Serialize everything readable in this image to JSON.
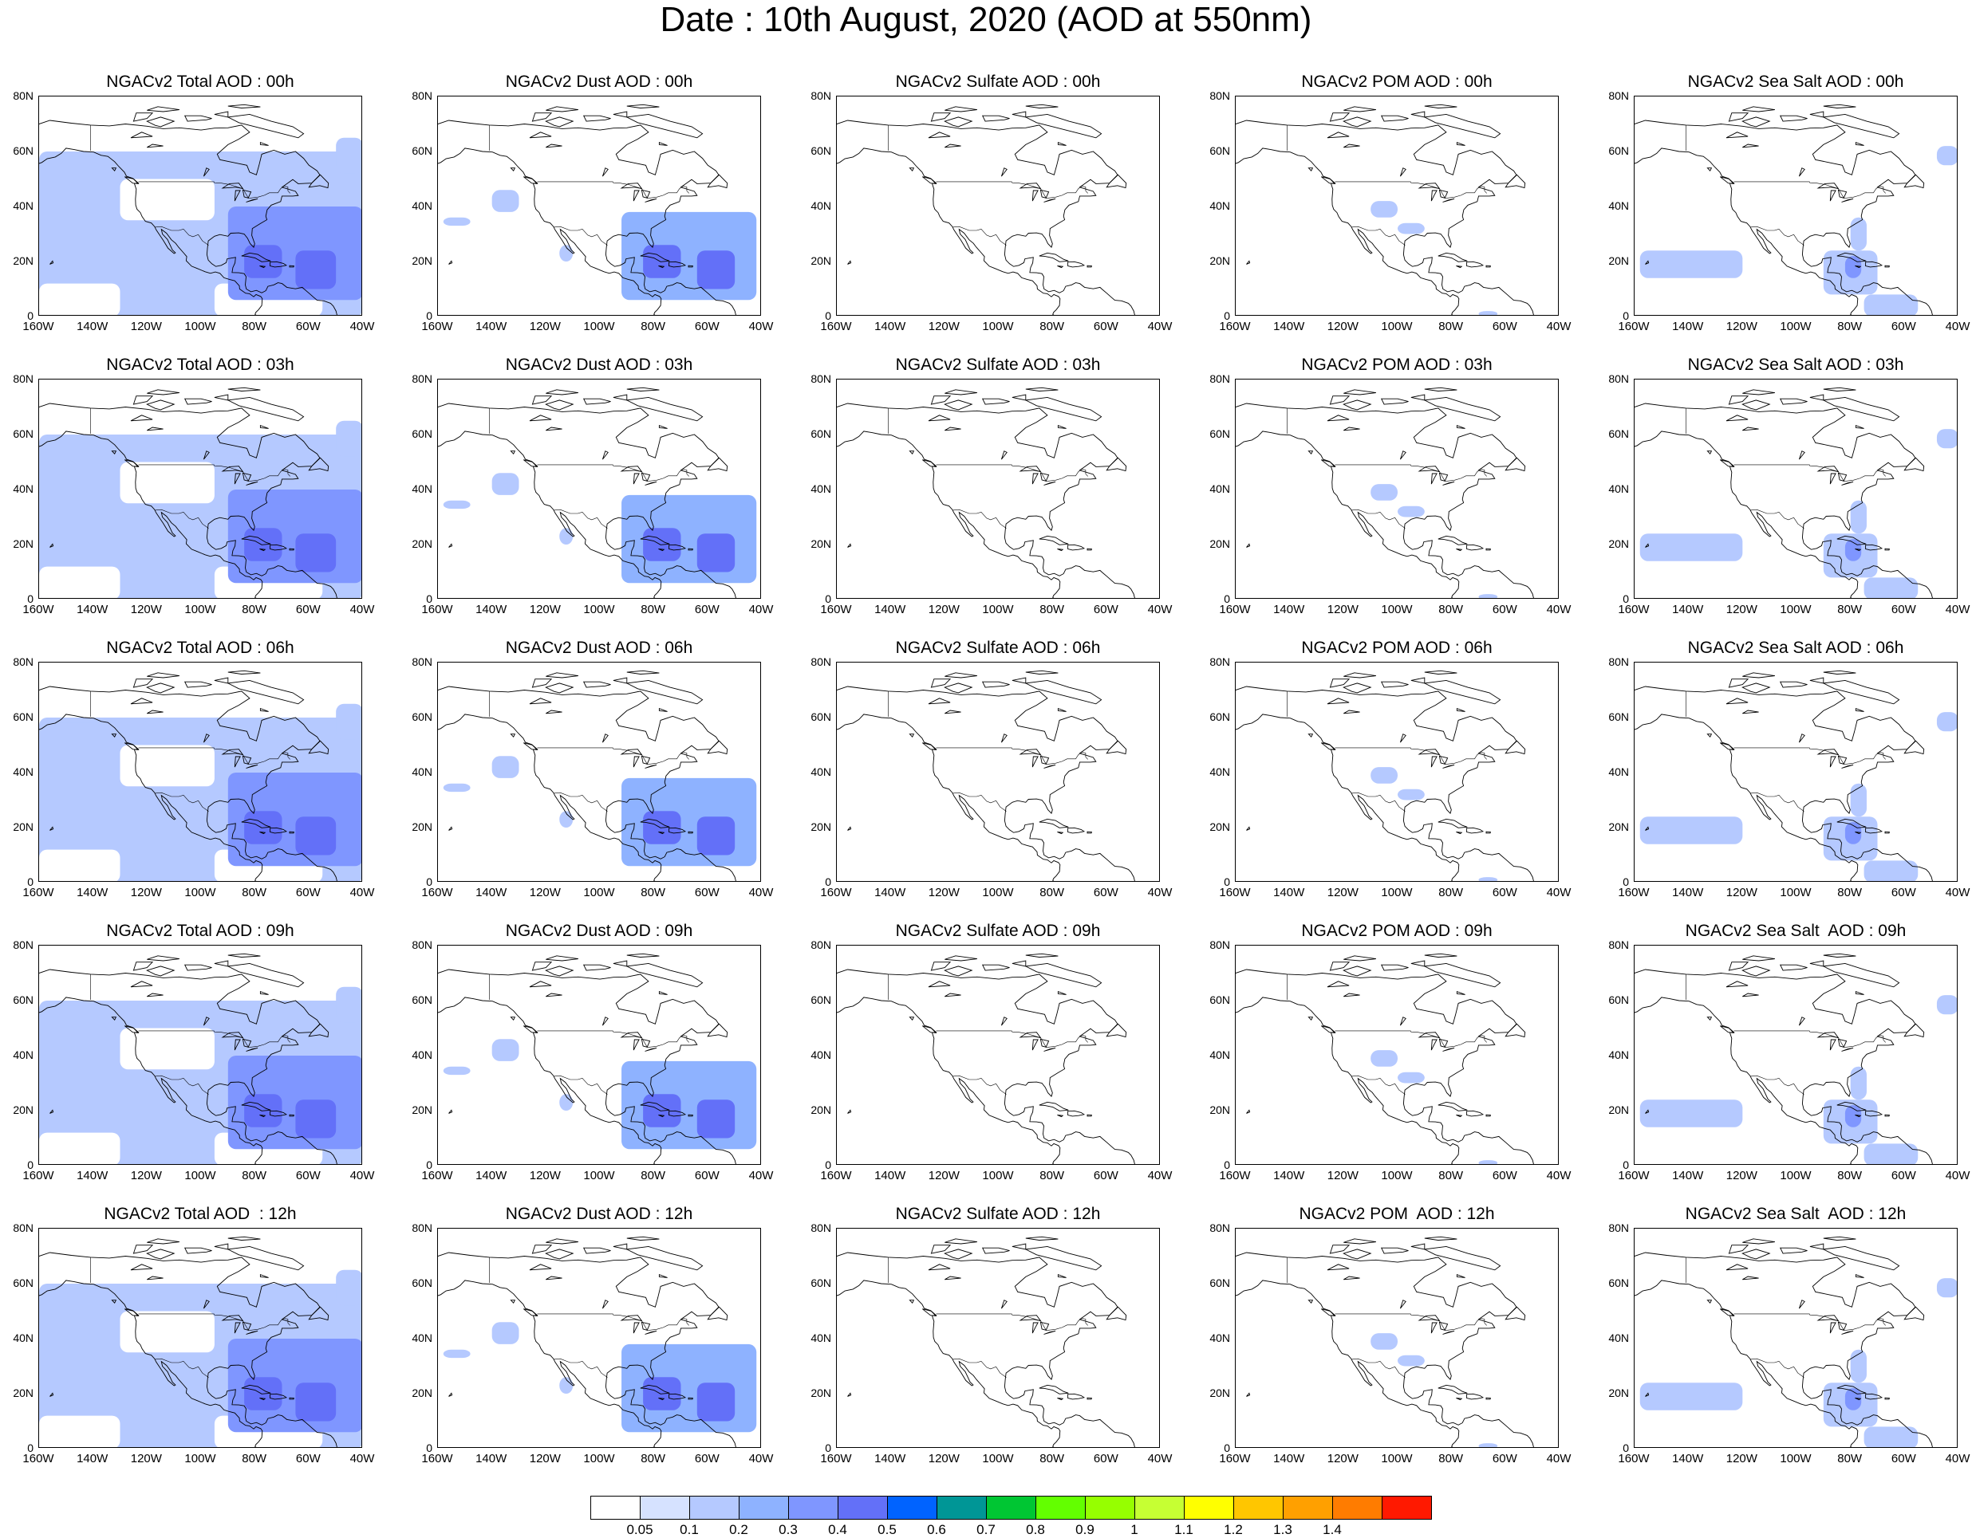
{
  "page_title": "Date : 10th August, 2020 (AOD at 550nm)",
  "map": {
    "columns": [
      "Total",
      "Dust",
      "Sulfate",
      "POM",
      "Sea Salt"
    ],
    "lat_ticks": [
      "80N",
      "60N",
      "40N",
      "20N",
      "0"
    ],
    "lon_ticks": [
      "160W",
      "140W",
      "120W",
      "100W",
      "80W",
      "60W",
      "40W"
    ],
    "lat_range": [
      0,
      80
    ],
    "lon_range": [
      -160,
      -40
    ],
    "panels": [
      {
        "title": "NGACv2 Total AOD : 00h",
        "species": "Total",
        "hour": "00h"
      },
      {
        "title": "NGACv2 Dust AOD : 00h",
        "species": "Dust",
        "hour": "00h"
      },
      {
        "title": "NGACv2 Sulfate AOD : 00h",
        "species": "Sulfate",
        "hour": "00h"
      },
      {
        "title": "NGACv2 POM AOD : 00h",
        "species": "POM",
        "hour": "00h"
      },
      {
        "title": "NGACv2 Sea Salt AOD : 00h",
        "species": "Sea Salt",
        "hour": "00h"
      },
      {
        "title": "NGACv2 Total AOD : 03h",
        "species": "Total",
        "hour": "03h"
      },
      {
        "title": "NGACv2 Dust AOD : 03h",
        "species": "Dust",
        "hour": "03h"
      },
      {
        "title": "NGACv2 Sulfate AOD : 03h",
        "species": "Sulfate",
        "hour": "03h"
      },
      {
        "title": "NGACv2 POM AOD : 03h",
        "species": "POM",
        "hour": "03h"
      },
      {
        "title": "NGACv2 Sea Salt AOD : 03h",
        "species": "Sea Salt",
        "hour": "03h"
      },
      {
        "title": "NGACv2 Total AOD : 06h",
        "species": "Total",
        "hour": "06h"
      },
      {
        "title": "NGACv2 Dust AOD : 06h",
        "species": "Dust",
        "hour": "06h"
      },
      {
        "title": "NGACv2 Sulfate AOD : 06h",
        "species": "Sulfate",
        "hour": "06h"
      },
      {
        "title": "NGACv2 POM AOD : 06h",
        "species": "POM",
        "hour": "06h"
      },
      {
        "title": "NGACv2 Sea Salt AOD : 06h",
        "species": "Sea Salt",
        "hour": "06h"
      },
      {
        "title": "NGACv2 Total AOD : 09h",
        "species": "Total",
        "hour": "09h"
      },
      {
        "title": "NGACv2 Dust AOD : 09h",
        "species": "Dust",
        "hour": "09h"
      },
      {
        "title": "NGACv2 Sulfate AOD : 09h",
        "species": "Sulfate",
        "hour": "09h"
      },
      {
        "title": "NGACv2 POM AOD : 09h",
        "species": "POM",
        "hour": "09h"
      },
      {
        "title": "NGACv2 Sea Salt  AOD : 09h",
        "species": "Sea Salt",
        "hour": "09h"
      },
      {
        "title": "NGACv2 Total AOD  : 12h",
        "species": "Total",
        "hour": "12h"
      },
      {
        "title": "NGACv2 Dust AOD : 12h",
        "species": "Dust",
        "hour": "12h"
      },
      {
        "title": "NGACv2 Sulfate AOD : 12h",
        "species": "Sulfate",
        "hour": "12h"
      },
      {
        "title": "NGACv2 POM  AOD : 12h",
        "species": "POM",
        "hour": "12h"
      },
      {
        "title": "NGACv2 Sea Salt  AOD : 12h",
        "species": "Sea Salt",
        "hour": "12h"
      }
    ]
  },
  "colorbar": {
    "colors": [
      "#ffffff",
      "#d6e2ff",
      "#b5c9ff",
      "#8eb2ff",
      "#7f96ff",
      "#6370f8",
      "#0063ff",
      "#009696",
      "#00c633",
      "#63ff00",
      "#96ff00",
      "#c6ff33",
      "#ffff00",
      "#ffc600",
      "#ffa000",
      "#ff7c00",
      "#ff1900"
    ],
    "labels": [
      "0.05",
      "0.1",
      "0.2",
      "0.3",
      "0.4",
      "0.5",
      "0.6",
      "0.7",
      "0.8",
      "0.9",
      "1",
      "1.1",
      "1.2",
      "1.3",
      "1.4"
    ]
  }
}
